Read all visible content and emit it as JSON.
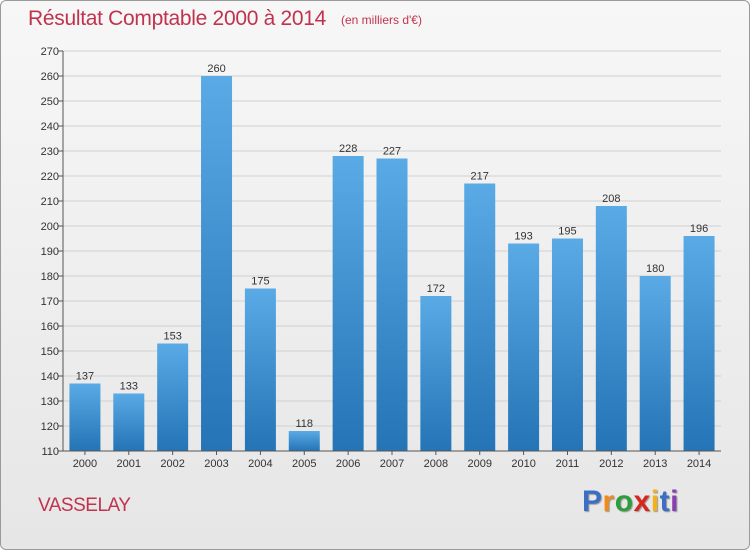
{
  "title": "Résultat Comptable 2000 à 2014",
  "subtitle": "(en milliers d'€)",
  "commune": "VASSELAY",
  "logo": {
    "letters": [
      "P",
      "r",
      "o",
      "x",
      "i",
      "t",
      "i"
    ],
    "colors": [
      "#3a6fc4",
      "#f18a1c",
      "#2e9d3c",
      "#d8261c",
      "#f3b21a",
      "#3a6fc4",
      "#8a3fb0"
    ]
  },
  "colors": {
    "title": "#c0334d",
    "bar_light": "#5aaae6",
    "bar_dark": "#2474b6",
    "grid": "#d0d0d0"
  },
  "chart_data": {
    "type": "bar",
    "title": "Résultat Comptable 2000 à 2014",
    "subtitle": "(en milliers d'€)",
    "xlabel": "",
    "ylabel": "",
    "categories": [
      "2000",
      "2001",
      "2002",
      "2003",
      "2004",
      "2005",
      "2006",
      "2007",
      "2008",
      "2009",
      "2010",
      "2011",
      "2012",
      "2013",
      "2014"
    ],
    "values": [
      137,
      133,
      153,
      260,
      175,
      118,
      228,
      227,
      172,
      217,
      193,
      195,
      208,
      180,
      196
    ],
    "ylim": [
      110,
      270
    ],
    "yticks": [
      110,
      120,
      130,
      140,
      150,
      160,
      170,
      180,
      190,
      200,
      210,
      220,
      230,
      240,
      250,
      260,
      270
    ],
    "grid": true,
    "legend": "none"
  }
}
